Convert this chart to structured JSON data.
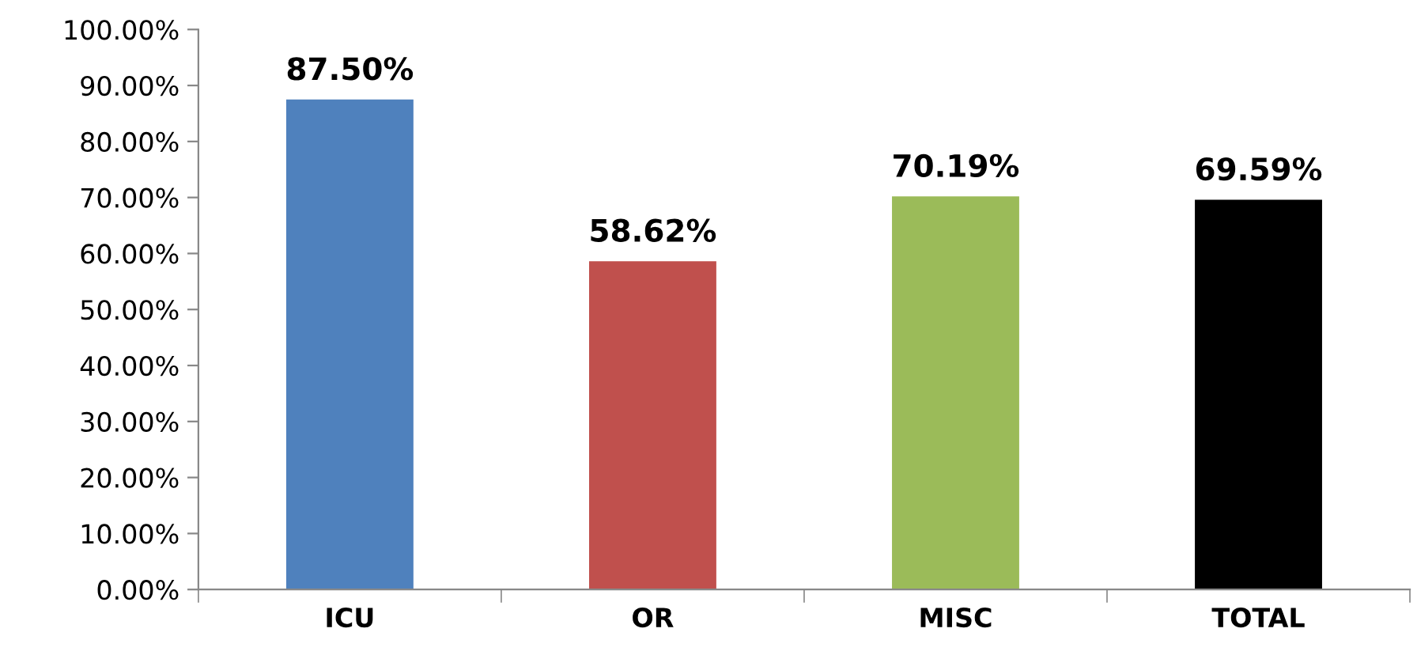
{
  "chart_data": {
    "type": "bar",
    "categories": [
      "ICU",
      "OR",
      "MISC",
      "TOTAL"
    ],
    "values": [
      87.5,
      58.62,
      70.19,
      69.59
    ],
    "colors": [
      "#4f81bd",
      "#c0504d",
      "#9bbb59",
      "#000000"
    ],
    "value_labels": [
      "87.50%",
      "58.62%",
      "70.19%",
      "69.59%"
    ],
    "ylim": [
      0,
      100
    ],
    "yticks": [
      {
        "value": 0,
        "label": "0.00%"
      },
      {
        "value": 10,
        "label": "10.00%"
      },
      {
        "value": 20,
        "label": "20.00%"
      },
      {
        "value": 30,
        "label": "30.00%"
      },
      {
        "value": 40,
        "label": "40.00%"
      },
      {
        "value": 50,
        "label": "50.00%"
      },
      {
        "value": 60,
        "label": "60.00%"
      },
      {
        "value": 70,
        "label": "70.00%"
      },
      {
        "value": 80,
        "label": "80.00%"
      },
      {
        "value": 90,
        "label": "90.00%"
      },
      {
        "value": 100,
        "label": "100.00%"
      }
    ],
    "grid": false,
    "legend": false
  }
}
